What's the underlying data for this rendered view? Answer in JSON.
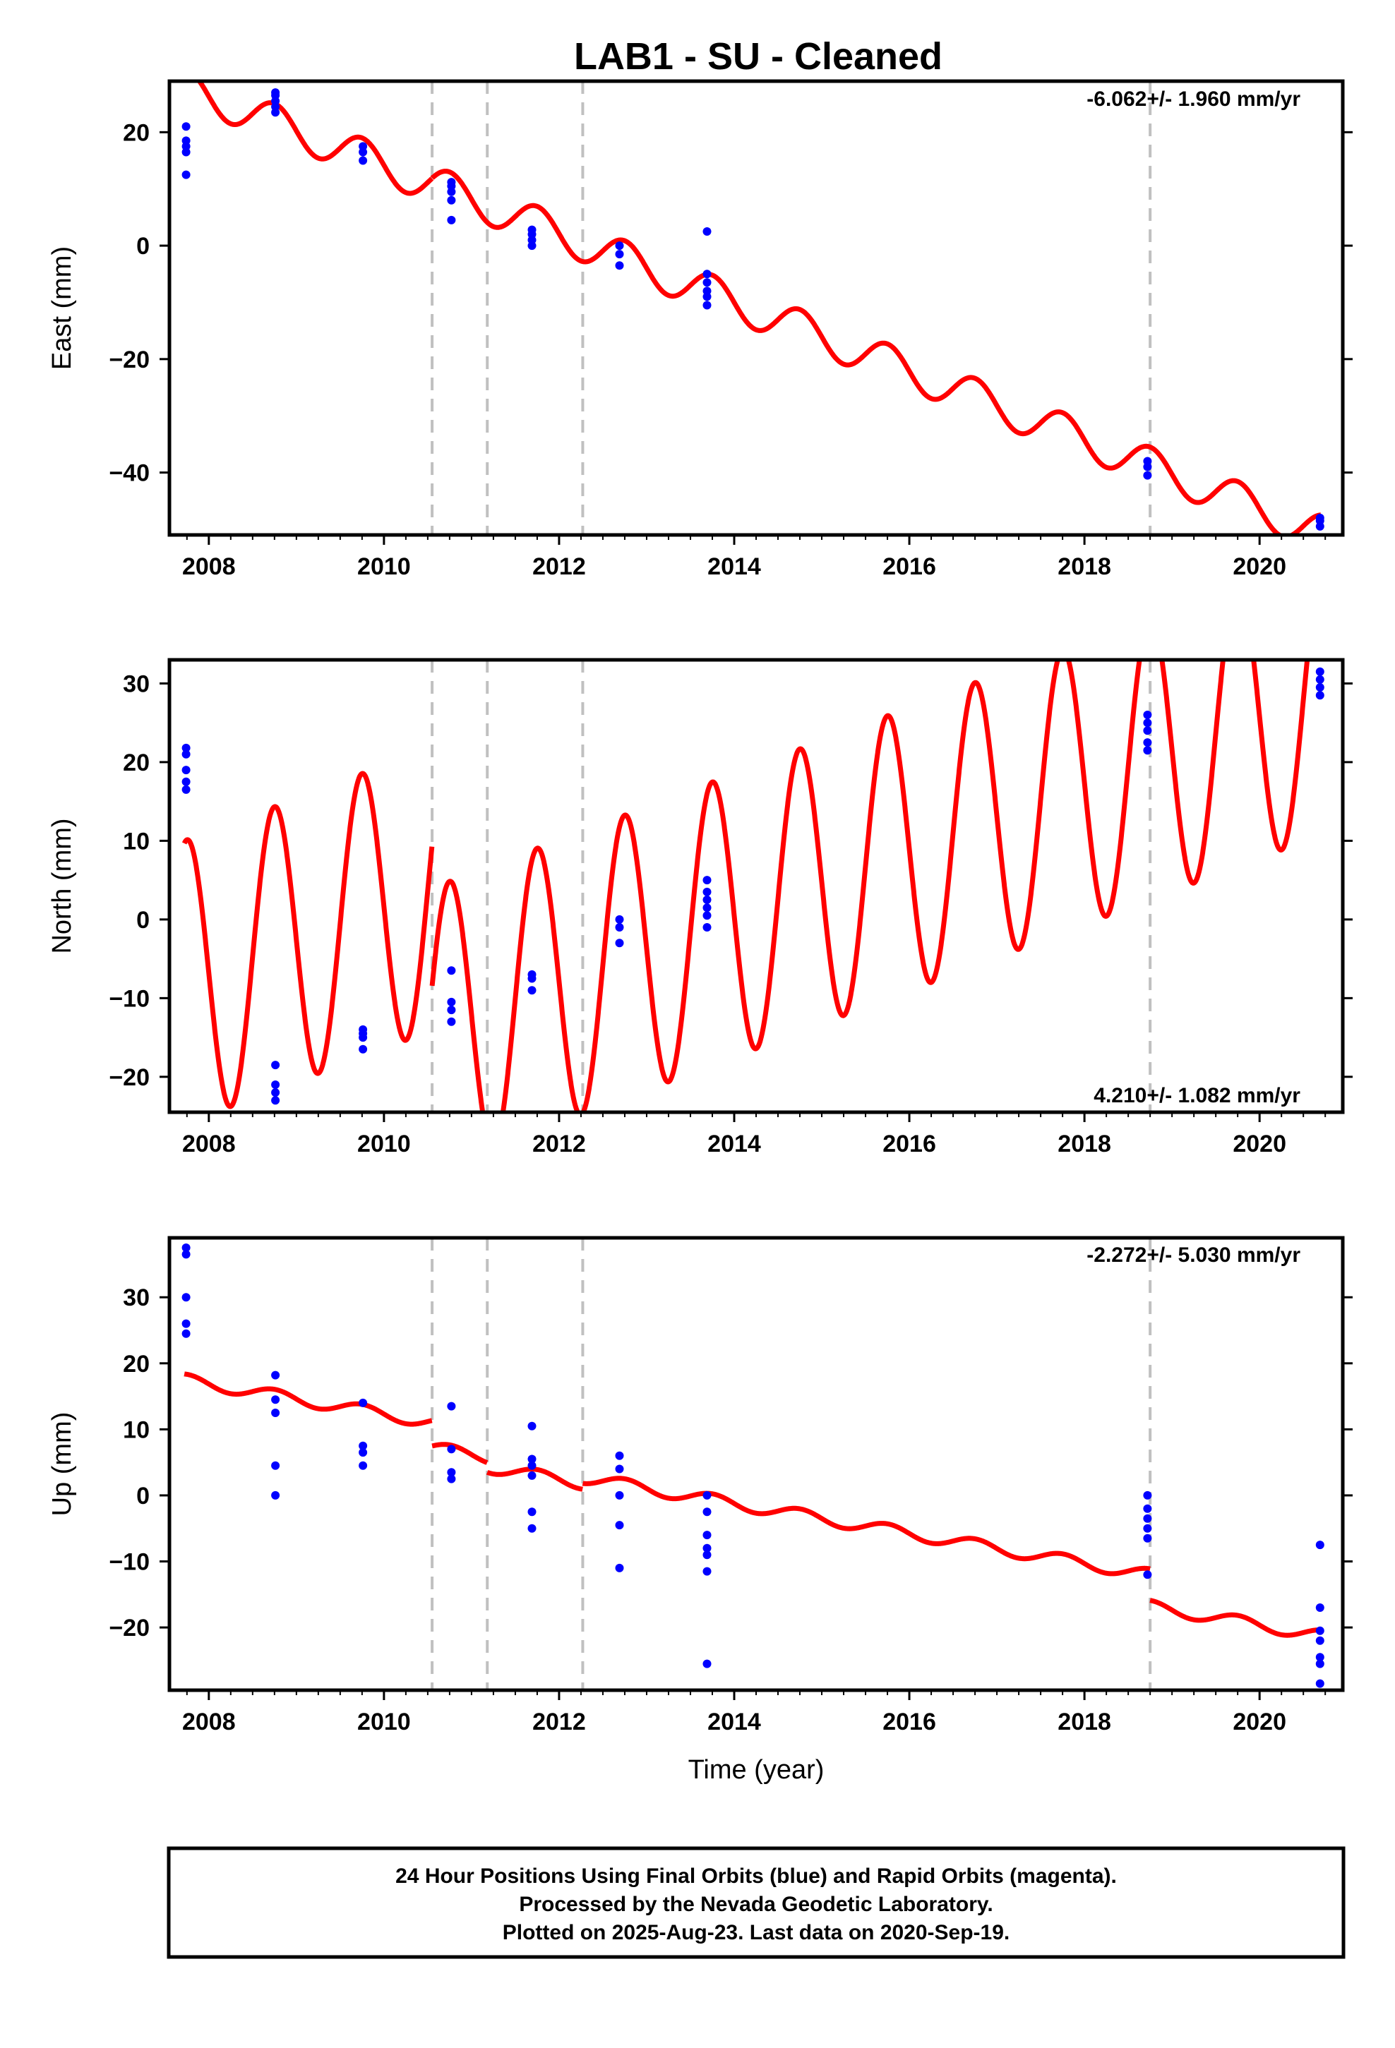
{
  "title": "LAB1  - SU - Cleaned",
  "footer": {
    "lines": [
      "24 Hour Positions Using Final Orbits (blue) and Rapid Orbits (magenta).",
      "Processed by the Nevada Geodetic Laboratory.",
      "Plotted on 2025-Aug-23. Last data on 2020-Sep-19."
    ]
  },
  "colors": {
    "data_points": "#0000ff",
    "model": "#ff0000",
    "breaks": "#c0c0c0",
    "frame": "#000000"
  },
  "chart_data": [
    {
      "type": "scatter",
      "name": "east",
      "ylabel": "East (mm)",
      "xlabel": "",
      "rate_label": "-6.062+/- 1.960 mm/yr",
      "xlim": [
        2007.55,
        2020.95
      ],
      "ylim": [
        -51,
        29
      ],
      "xticks": [
        2008,
        2010,
        2012,
        2014,
        2016,
        2018,
        2020
      ],
      "yticks": [
        -40,
        -20,
        0,
        20
      ],
      "grid": false,
      "breaks": [
        2010.55,
        2011.18,
        2012.27,
        2018.75
      ],
      "points": [
        [
          2007.74,
          12.5
        ],
        [
          2007.74,
          16.5
        ],
        [
          2007.74,
          17.5
        ],
        [
          2007.74,
          18.5
        ],
        [
          2007.74,
          21
        ],
        [
          2008.76,
          23.5
        ],
        [
          2008.76,
          24.5
        ],
        [
          2008.76,
          25.5
        ],
        [
          2008.76,
          26.5
        ],
        [
          2008.76,
          27
        ],
        [
          2009.76,
          15
        ],
        [
          2009.76,
          16.5
        ],
        [
          2009.76,
          17.5
        ],
        [
          2010.77,
          4.5
        ],
        [
          2010.77,
          8
        ],
        [
          2010.77,
          9.5
        ],
        [
          2010.77,
          10.5
        ],
        [
          2010.77,
          11.2
        ],
        [
          2011.69,
          0
        ],
        [
          2011.69,
          1
        ],
        [
          2011.69,
          2
        ],
        [
          2011.69,
          2.8
        ],
        [
          2012.69,
          -3.5
        ],
        [
          2012.69,
          -1.5
        ],
        [
          2012.69,
          0
        ],
        [
          2013.69,
          -10.5
        ],
        [
          2013.69,
          -9
        ],
        [
          2013.69,
          -8
        ],
        [
          2013.69,
          -6.5
        ],
        [
          2013.69,
          -5
        ],
        [
          2013.69,
          2.5
        ],
        [
          2018.72,
          -40.5
        ],
        [
          2018.72,
          -39
        ],
        [
          2018.72,
          -38
        ],
        [
          2020.69,
          -49.5
        ],
        [
          2020.69,
          -48.5
        ],
        [
          2020.69,
          -48
        ]
      ],
      "model": {
        "rate": -6.062,
        "amplitude": 3.3,
        "start": 2007.72,
        "end": 2020.7,
        "segments": [
          {
            "from": 2007.72,
            "to": 2010.55,
            "base_at_start": 28.0
          },
          {
            "from": 2010.55,
            "to": 2020.7,
            "base_at_start": 10.9
          }
        ]
      }
    },
    {
      "type": "scatter",
      "name": "north",
      "ylabel": "North (mm)",
      "xlabel": "",
      "rate_label": "4.210+/- 1.082 mm/yr",
      "xlim": [
        2007.55,
        2020.95
      ],
      "ylim": [
        -24.5,
        33
      ],
      "xticks": [
        2008,
        2010,
        2012,
        2014,
        2016,
        2018,
        2020
      ],
      "yticks": [
        -20,
        -10,
        0,
        10,
        20,
        30
      ],
      "grid": false,
      "breaks": [
        2010.55,
        2011.18,
        2012.27,
        2018.75
      ],
      "points": [
        [
          2007.74,
          16.5
        ],
        [
          2007.74,
          17.5
        ],
        [
          2007.74,
          19
        ],
        [
          2007.74,
          21
        ],
        [
          2007.74,
          21.8
        ],
        [
          2008.76,
          -23
        ],
        [
          2008.76,
          -22
        ],
        [
          2008.76,
          -21
        ],
        [
          2008.76,
          -18.5
        ],
        [
          2009.76,
          -16.5
        ],
        [
          2009.76,
          -15
        ],
        [
          2009.76,
          -14.5
        ],
        [
          2009.76,
          -14
        ],
        [
          2010.77,
          -13
        ],
        [
          2010.77,
          -11.5
        ],
        [
          2010.77,
          -10.5
        ],
        [
          2010.77,
          -6.5
        ],
        [
          2011.69,
          -9
        ],
        [
          2011.69,
          -7.5
        ],
        [
          2011.69,
          -7
        ],
        [
          2012.69,
          -3
        ],
        [
          2012.69,
          -1
        ],
        [
          2012.69,
          0
        ],
        [
          2013.69,
          -1
        ],
        [
          2013.69,
          0.5
        ],
        [
          2013.69,
          1.5
        ],
        [
          2013.69,
          2.5
        ],
        [
          2013.69,
          3.5
        ],
        [
          2013.69,
          5
        ],
        [
          2018.72,
          21.5
        ],
        [
          2018.72,
          22.5
        ],
        [
          2018.72,
          24
        ],
        [
          2018.72,
          25
        ],
        [
          2018.72,
          26
        ],
        [
          2020.69,
          28.5
        ],
        [
          2020.69,
          29.5
        ],
        [
          2020.69,
          30.5
        ],
        [
          2020.69,
          31.5
        ]
      ],
      "model": {
        "rate": 4.21,
        "amplitude": 18.0,
        "start": 2007.72,
        "end": 2020.7,
        "segments": [
          {
            "from": 2007.72,
            "to": 2010.55,
            "base_at_start": -8.0
          },
          {
            "from": 2010.55,
            "to": 2020.7,
            "base_at_start": -14.0
          }
        ]
      }
    },
    {
      "type": "scatter",
      "name": "up",
      "ylabel": "Up (mm)",
      "xlabel": "Time (year)",
      "rate_label": "-2.272+/- 5.030 mm/yr",
      "xlim": [
        2007.55,
        2020.95
      ],
      "ylim": [
        -29.5,
        39
      ],
      "xticks": [
        2008,
        2010,
        2012,
        2014,
        2016,
        2018,
        2020
      ],
      "yticks": [
        -20,
        -10,
        0,
        10,
        20,
        30
      ],
      "grid": false,
      "breaks": [
        2010.55,
        2011.18,
        2012.27,
        2018.75
      ],
      "points": [
        [
          2007.74,
          24.5
        ],
        [
          2007.74,
          26
        ],
        [
          2007.74,
          30
        ],
        [
          2007.74,
          36.5
        ],
        [
          2007.74,
          37.5
        ],
        [
          2008.76,
          0
        ],
        [
          2008.76,
          4.5
        ],
        [
          2008.76,
          12.5
        ],
        [
          2008.76,
          14.5
        ],
        [
          2008.76,
          18.2
        ],
        [
          2009.76,
          4.5
        ],
        [
          2009.76,
          6.5
        ],
        [
          2009.76,
          7.5
        ],
        [
          2009.76,
          14
        ],
        [
          2010.77,
          2.5
        ],
        [
          2010.77,
          3.5
        ],
        [
          2010.77,
          7
        ],
        [
          2010.77,
          13.5
        ],
        [
          2011.69,
          -5
        ],
        [
          2011.69,
          -2.5
        ],
        [
          2011.69,
          3
        ],
        [
          2011.69,
          4.5
        ],
        [
          2011.69,
          5.5
        ],
        [
          2011.69,
          10.5
        ],
        [
          2012.69,
          -11
        ],
        [
          2012.69,
          -4.5
        ],
        [
          2012.69,
          0
        ],
        [
          2012.69,
          4
        ],
        [
          2012.69,
          6
        ],
        [
          2013.69,
          -25.5
        ],
        [
          2013.69,
          -11.5
        ],
        [
          2013.69,
          -9
        ],
        [
          2013.69,
          -8
        ],
        [
          2013.69,
          -6
        ],
        [
          2013.69,
          -2.5
        ],
        [
          2013.69,
          0
        ],
        [
          2018.72,
          -12
        ],
        [
          2018.72,
          -6.5
        ],
        [
          2018.72,
          -5
        ],
        [
          2018.72,
          -3.5
        ],
        [
          2018.72,
          -2
        ],
        [
          2018.72,
          0
        ],
        [
          2020.69,
          -28.5
        ],
        [
          2020.69,
          -25.5
        ],
        [
          2020.69,
          -24.5
        ],
        [
          2020.69,
          -22
        ],
        [
          2020.69,
          -20.5
        ],
        [
          2020.69,
          -17
        ],
        [
          2020.69,
          -7.5
        ]
      ],
      "model": {
        "rate": -2.272,
        "amplitude": 0.9,
        "start": 2007.72,
        "end": 2020.7,
        "segments": [
          {
            "from": 2007.72,
            "to": 2010.55,
            "base_at_start": 17.5
          },
          {
            "from": 2010.55,
            "to": 2011.18,
            "base_at_start": 7.2
          },
          {
            "from": 2011.18,
            "to": 2012.27,
            "base_at_start": 4.3
          },
          {
            "from": 2012.27,
            "to": 2018.75,
            "base_at_start": 2.7
          },
          {
            "from": 2018.75,
            "to": 2020.7,
            "base_at_start": -16.8
          }
        ]
      }
    }
  ]
}
